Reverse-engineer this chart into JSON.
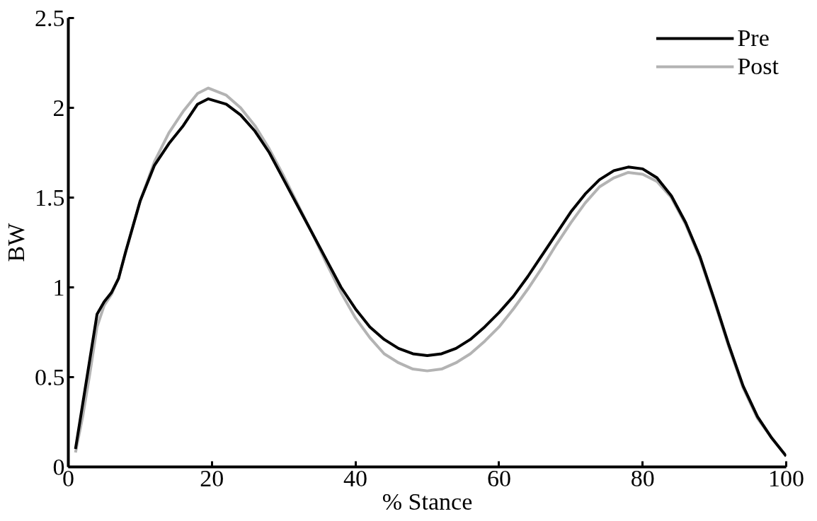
{
  "chart_data": {
    "type": "line",
    "xlabel": "% Stance",
    "ylabel": "BW",
    "xlim": [
      0,
      100
    ],
    "ylim": [
      0,
      2.5
    ],
    "xticks": [
      0,
      20,
      40,
      60,
      80,
      100
    ],
    "yticks": [
      0,
      0.5,
      1,
      1.5,
      2,
      2.5
    ],
    "x": [
      1,
      2,
      3,
      4,
      5,
      6,
      7,
      8,
      10,
      12,
      14,
      16,
      18,
      19.5,
      22,
      24,
      26,
      28,
      30,
      32,
      34,
      36,
      38,
      40,
      42,
      44,
      46,
      48,
      50,
      52,
      54,
      56,
      58,
      60,
      62,
      64,
      66,
      68,
      70,
      72,
      74,
      76,
      78,
      80,
      82,
      84,
      86,
      88,
      90,
      92,
      94,
      96,
      98,
      100
    ],
    "series": [
      {
        "name": "Post",
        "color": "#b3b3b3",
        "values": [
          0.08,
          0.28,
          0.52,
          0.78,
          0.9,
          0.96,
          1.05,
          1.2,
          1.48,
          1.7,
          1.86,
          1.98,
          2.08,
          2.11,
          2.07,
          2.0,
          1.9,
          1.77,
          1.62,
          1.46,
          1.3,
          1.13,
          0.97,
          0.83,
          0.72,
          0.63,
          0.58,
          0.545,
          0.535,
          0.545,
          0.58,
          0.63,
          0.7,
          0.78,
          0.88,
          0.99,
          1.11,
          1.24,
          1.36,
          1.47,
          1.56,
          1.61,
          1.64,
          1.63,
          1.59,
          1.5,
          1.35,
          1.16,
          0.92,
          0.67,
          0.44,
          0.27,
          0.16,
          0.06
        ]
      },
      {
        "name": "Pre",
        "color": "#000000",
        "values": [
          0.1,
          0.35,
          0.6,
          0.85,
          0.92,
          0.97,
          1.05,
          1.2,
          1.48,
          1.68,
          1.8,
          1.9,
          2.02,
          2.05,
          2.02,
          1.96,
          1.87,
          1.75,
          1.6,
          1.45,
          1.3,
          1.15,
          1.0,
          0.88,
          0.78,
          0.71,
          0.66,
          0.63,
          0.62,
          0.63,
          0.66,
          0.71,
          0.78,
          0.86,
          0.95,
          1.06,
          1.18,
          1.3,
          1.42,
          1.52,
          1.6,
          1.65,
          1.67,
          1.66,
          1.61,
          1.51,
          1.36,
          1.17,
          0.93,
          0.68,
          0.45,
          0.28,
          0.16,
          0.06
        ]
      }
    ],
    "legend": "top right",
    "grid": false,
    "line_style": "solid",
    "marker": "none"
  }
}
